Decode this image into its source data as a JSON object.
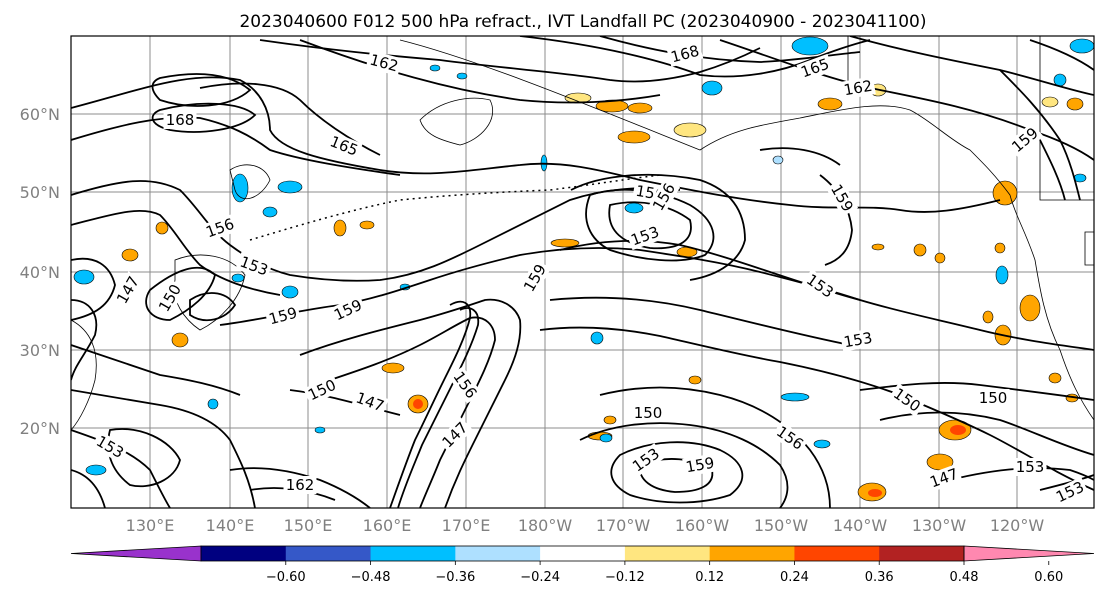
{
  "title": "2023040600 F012 500 hPa refract., IVT Landfall PC (2023040900 - 2023041100)",
  "map": {
    "lat_ticks": [
      "20°N",
      "30°N",
      "40°N",
      "50°N",
      "60°N"
    ],
    "lon_ticks": [
      "130°E",
      "140°E",
      "150°E",
      "160°E",
      "170°E",
      "180°W",
      "170°W",
      "160°W",
      "150°W",
      "140°W",
      "130°W",
      "120°W"
    ],
    "contour_color": "#000000",
    "gridline_color": "#8c8c8c",
    "contour_labels": [
      {
        "text": "162",
        "angle": 15
      },
      {
        "text": "168",
        "angle": -15
      },
      {
        "text": "165",
        "angle": -20
      },
      {
        "text": "162",
        "angle": -10
      },
      {
        "text": "168",
        "angle": 0
      },
      {
        "text": "165",
        "angle": 22
      },
      {
        "text": "159",
        "angle": -40
      },
      {
        "text": "156",
        "angle": -20
      },
      {
        "text": "153",
        "angle": 20
      },
      {
        "text": "159",
        "angle": 60
      },
      {
        "text": "150",
        "angle": 10
      },
      {
        "text": "156",
        "angle": -60
      },
      {
        "text": "153",
        "angle": -20
      },
      {
        "text": "159",
        "angle": -15
      },
      {
        "text": "159",
        "angle": -25
      },
      {
        "text": "159",
        "angle": -60
      },
      {
        "text": "153",
        "angle": 35
      },
      {
        "text": "153",
        "angle": -10
      },
      {
        "text": "150",
        "angle": -25
      },
      {
        "text": "147",
        "angle": 20
      },
      {
        "text": "150",
        "angle": 35
      },
      {
        "text": "150",
        "angle": 0
      },
      {
        "text": "150",
        "angle": 0
      },
      {
        "text": "153",
        "angle": -35
      },
      {
        "text": "159",
        "angle": -10
      },
      {
        "text": "156",
        "angle": 35
      },
      {
        "text": "147",
        "angle": -45
      },
      {
        "text": "153",
        "angle": 0
      },
      {
        "text": "153",
        "angle": -25
      },
      {
        "text": "147",
        "angle": -20
      },
      {
        "text": "156",
        "angle": 55
      },
      {
        "text": "150",
        "angle": -60
      },
      {
        "text": "153",
        "angle": 30
      },
      {
        "text": "147",
        "angle": -60
      },
      {
        "text": "162",
        "angle": 0
      }
    ]
  },
  "colorbar": {
    "colors": [
      "#9932cc",
      "#000080",
      "#3558c8",
      "#00bfff",
      "#aee0ff",
      "#ffffff",
      "#ffe680",
      "#ffa500",
      "#ff4500",
      "#b22222",
      "#ff88b0"
    ],
    "ticks": [
      "−0.60",
      "−0.48",
      "−0.36",
      "−0.24",
      "−0.12",
      "0.12",
      "0.24",
      "0.36",
      "0.48",
      "0.60"
    ]
  }
}
